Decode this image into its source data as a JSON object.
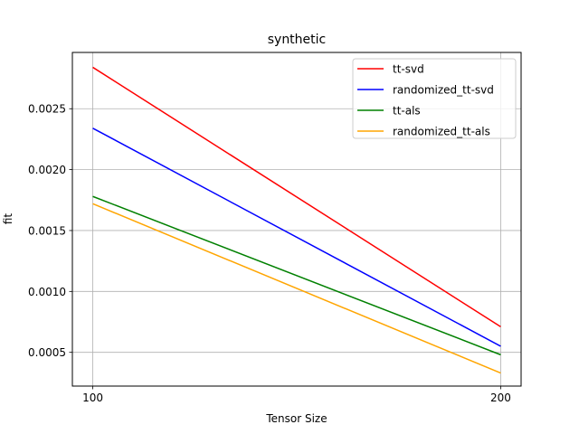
{
  "chart_data": {
    "type": "line",
    "title": "synthetic",
    "xlabel": "Tensor Size",
    "ylabel": "fit",
    "x": [
      100,
      200
    ],
    "xticks": [
      100,
      200
    ],
    "xtick_labels": [
      "100",
      "200"
    ],
    "xlim": [
      95,
      205
    ],
    "yticks": [
      0.0005,
      0.001,
      0.0015,
      0.002,
      0.0025
    ],
    "ytick_labels": [
      "0.0005",
      "0.0010",
      "0.0015",
      "0.0020",
      "0.0025"
    ],
    "ylim": [
      0.000223,
      0.002962
    ],
    "grid": true,
    "legend_position": "top-right",
    "series": [
      {
        "name": "tt-svd",
        "color": "#ff0000",
        "values": [
          0.00284,
          0.00071
        ]
      },
      {
        "name": "randomized_tt-svd",
        "color": "#0000ff",
        "values": [
          0.00234,
          0.00055
        ]
      },
      {
        "name": "tt-als",
        "color": "#008000",
        "values": [
          0.00178,
          0.00048
        ]
      },
      {
        "name": "randomized_tt-als",
        "color": "#ffa500",
        "values": [
          0.00172,
          0.00033
        ]
      }
    ]
  }
}
